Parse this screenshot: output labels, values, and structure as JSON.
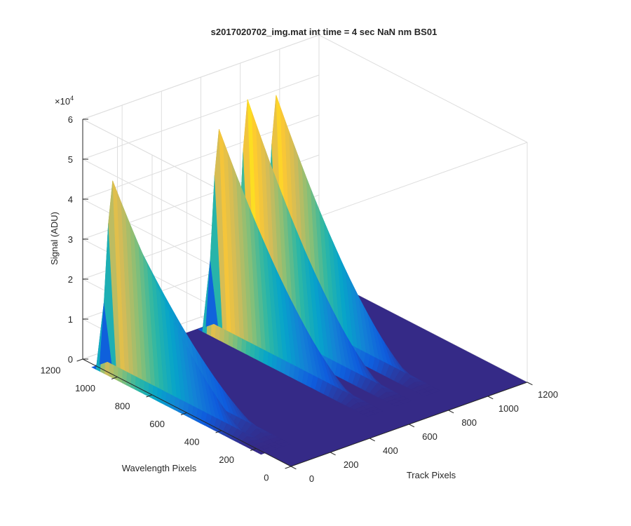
{
  "chart_data": {
    "type": "surface",
    "title": "s2017020702_img.mat int time = 4 sec  NaN nm BS01",
    "xlabel": "Track Pixels",
    "ylabel": "Wavelength Pixels",
    "zlabel": "Signal (ADU)",
    "z_exponent": "×10^4",
    "z_exponent_base": "×10",
    "z_exponent_power": "4",
    "xlim": [
      0,
      1200
    ],
    "ylim": [
      0,
      1200
    ],
    "zlim": [
      0,
      60000
    ],
    "x_ticks": [
      "0",
      "200",
      "400",
      "600",
      "800",
      "1000",
      "1200"
    ],
    "y_ticks": [
      "0",
      "200",
      "400",
      "600",
      "800",
      "1000",
      "1200"
    ],
    "z_ticks": [
      "0",
      "1",
      "2",
      "3",
      "4",
      "5",
      "6"
    ],
    "grid": true,
    "colormap": "parula",
    "colors": [
      "#352a87",
      "#0f5cdd",
      "#1481d6",
      "#06a4ca",
      "#2eb7a4",
      "#87bf77",
      "#d1bb59",
      "#fec832",
      "#f9fb0e"
    ],
    "tracks": [
      {
        "name_hidden": true,
        "x_center": 20,
        "peak": 48500
      },
      {
        "name_hidden": true,
        "x_center": 90,
        "peak": 37000
      },
      {
        "name_hidden": true,
        "x_center": 560,
        "peak": 52000
      },
      {
        "name_hidden": true,
        "x_center": 705,
        "peak": 57000
      },
      {
        "name_hidden": true,
        "x_center": 850,
        "peak": 55500
      }
    ],
    "track_profile": {
      "y_peak": 1050,
      "y_extent": [
        0,
        1130
      ],
      "decay": "signal rises sharply near y≈1120, peaks near y≈1050 and decays toward 0 at y≈200"
    }
  }
}
